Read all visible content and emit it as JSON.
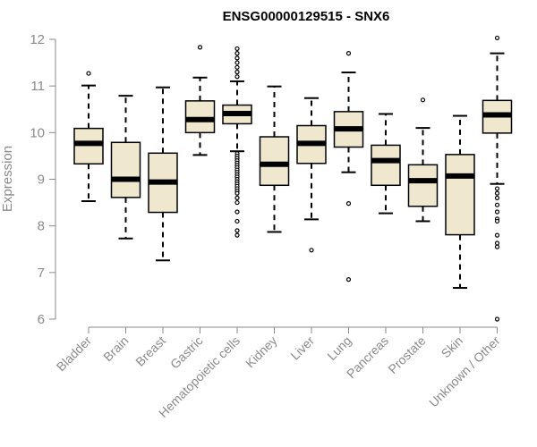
{
  "chart_data": {
    "type": "boxplot",
    "title": "ENSG00000129515 - SNX6",
    "xlabel": "",
    "ylabel": "Expression",
    "ylim": [
      6,
      12
    ],
    "yticks": [
      6,
      7,
      8,
      9,
      10,
      11,
      12
    ],
    "grid": false,
    "box_color": "#efe8cf",
    "categories": [
      "Bladder",
      "Brain",
      "Breast",
      "Gastric",
      "Hematopoietic cells",
      "Kidney",
      "Liver",
      "Lung",
      "Pancreas",
      "Prostate",
      "Skin",
      "Unknown / Other"
    ],
    "boxes": [
      {
        "lower_whisker": 8.53,
        "q1": 9.33,
        "median": 9.77,
        "q3": 10.09,
        "upper_whisker": 11.01,
        "outliers": [
          11.27
        ]
      },
      {
        "lower_whisker": 7.73,
        "q1": 8.61,
        "median": 9.0,
        "q3": 9.79,
        "upper_whisker": 10.79,
        "outliers": []
      },
      {
        "lower_whisker": 7.26,
        "q1": 8.29,
        "median": 8.94,
        "q3": 9.56,
        "upper_whisker": 10.97,
        "outliers": []
      },
      {
        "lower_whisker": 9.52,
        "q1": 10.0,
        "median": 10.28,
        "q3": 10.68,
        "upper_whisker": 11.18,
        "outliers": [
          11.83
        ]
      },
      {
        "lower_whisker": 9.6,
        "q1": 10.19,
        "median": 10.41,
        "q3": 10.59,
        "upper_whisker": 11.1,
        "outliers": [
          11.8,
          11.7,
          11.6,
          11.5,
          11.4,
          11.3,
          11.2,
          9.55,
          9.5,
          9.45,
          9.4,
          9.35,
          9.3,
          9.25,
          9.2,
          9.15,
          9.1,
          9.05,
          9.0,
          8.95,
          8.9,
          8.85,
          8.8,
          8.75,
          8.7,
          8.6,
          8.5,
          8.3,
          8.1,
          7.9,
          7.8
        ]
      },
      {
        "lower_whisker": 7.87,
        "q1": 8.87,
        "median": 9.32,
        "q3": 9.91,
        "upper_whisker": 10.99,
        "outliers": []
      },
      {
        "lower_whisker": 8.14,
        "q1": 9.34,
        "median": 9.77,
        "q3": 10.15,
        "upper_whisker": 10.74,
        "outliers": [
          7.48
        ]
      },
      {
        "lower_whisker": 9.15,
        "q1": 9.69,
        "median": 10.08,
        "q3": 10.45,
        "upper_whisker": 11.29,
        "outliers": [
          11.7,
          8.48,
          6.85
        ]
      },
      {
        "lower_whisker": 8.27,
        "q1": 8.87,
        "median": 9.4,
        "q3": 9.73,
        "upper_whisker": 10.4,
        "outliers": []
      },
      {
        "lower_whisker": 8.1,
        "q1": 8.42,
        "median": 8.97,
        "q3": 9.31,
        "upper_whisker": 10.1,
        "outliers": [
          10.7
        ]
      },
      {
        "lower_whisker": 6.67,
        "q1": 7.81,
        "median": 9.07,
        "q3": 9.53,
        "upper_whisker": 10.36,
        "outliers": []
      },
      {
        "lower_whisker": 8.9,
        "q1": 9.99,
        "median": 10.38,
        "q3": 10.69,
        "upper_whisker": 11.7,
        "outliers": [
          12.03,
          8.8,
          8.7,
          8.6,
          8.45,
          8.3,
          8.15,
          8.1,
          7.8,
          7.63,
          7.55,
          6.0
        ]
      }
    ]
  }
}
